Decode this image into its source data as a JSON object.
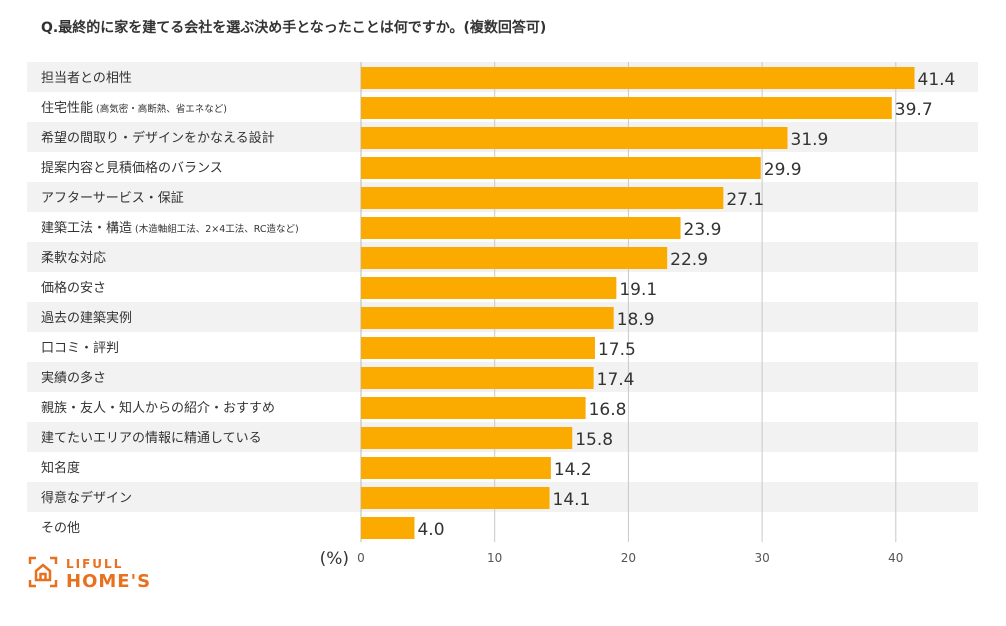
{
  "title": "Q.最終的に家を建てる会社を選ぶ決め手となったことは何ですか。(複数回答可)",
  "logo": {
    "line1": "LIFULL",
    "line2": "HOME'S",
    "color": "#e8701e"
  },
  "chart_data": {
    "type": "bar",
    "orientation": "horizontal",
    "title": "Q.最終的に家を建てる会社を選ぶ決め手となったことは何ですか。(複数回答可)",
    "xlabel": "(%)",
    "xlim": [
      0,
      45
    ],
    "xticks": [
      0,
      10,
      20,
      30,
      40
    ],
    "grid": true,
    "bar_color": "#fbab00",
    "categories": [
      {
        "main": "担当者との相性",
        "note": ""
      },
      {
        "main": "住宅性能",
        "note": "(高気密・高断熱、省エネなど)"
      },
      {
        "main": "希望の間取り・デザインをかなえる設計",
        "note": ""
      },
      {
        "main": "提案内容と見積価格のバランス",
        "note": ""
      },
      {
        "main": "アフターサービス・保証",
        "note": ""
      },
      {
        "main": "建築工法・構造",
        "note": "(木造軸組工法、2×4工法、RC造など)"
      },
      {
        "main": "柔軟な対応",
        "note": ""
      },
      {
        "main": "価格の安さ",
        "note": ""
      },
      {
        "main": "過去の建築実例",
        "note": ""
      },
      {
        "main": "口コミ・評判",
        "note": ""
      },
      {
        "main": "実績の多さ",
        "note": ""
      },
      {
        "main": "親族・友人・知人からの紹介・おすすめ",
        "note": ""
      },
      {
        "main": "建てたいエリアの情報に精通している",
        "note": ""
      },
      {
        "main": "知名度",
        "note": ""
      },
      {
        "main": "得意なデザイン",
        "note": ""
      },
      {
        "main": "その他",
        "note": ""
      }
    ],
    "values": [
      "41.4",
      "39.7",
      "31.9",
      "29.9",
      "27.1",
      "23.9",
      "22.9",
      "19.1",
      "18.9",
      "17.5",
      "17.4",
      "16.8",
      "15.8",
      "14.2",
      "14.1",
      "4.0"
    ]
  }
}
